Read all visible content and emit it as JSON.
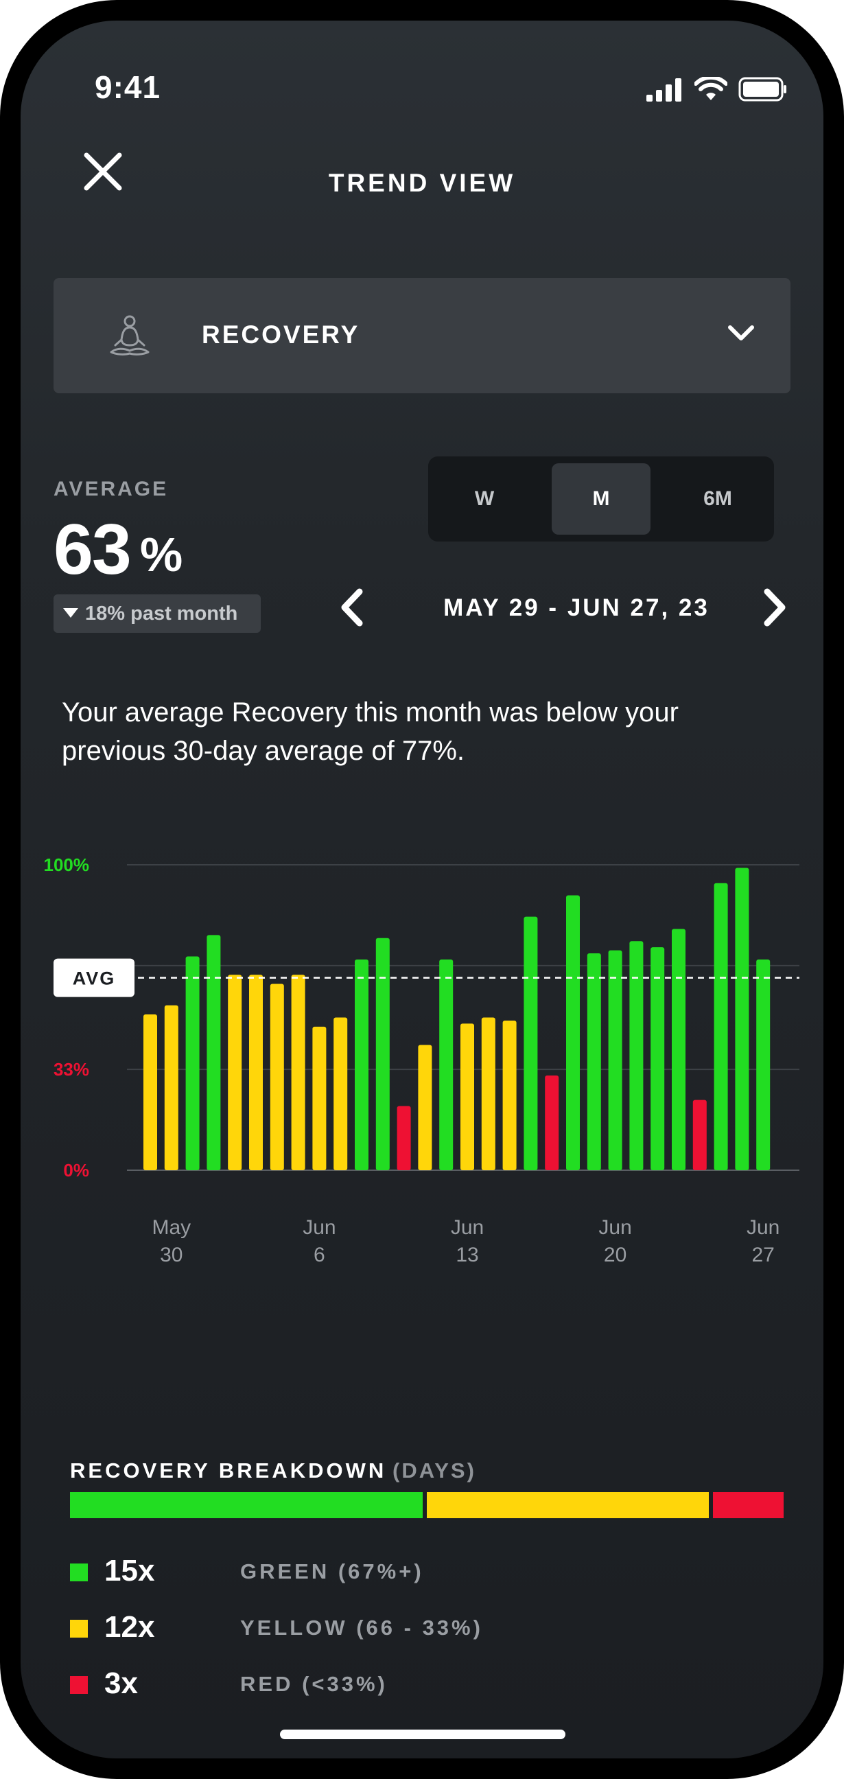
{
  "status": {
    "time": "9:41"
  },
  "header": {
    "title": "TREND VIEW",
    "close_icon": "close-icon"
  },
  "metric_dropdown": {
    "label": "RECOVERY",
    "icon": "meditation-icon",
    "chevron": "chevron-down-icon"
  },
  "average": {
    "label": "AVERAGE",
    "value": "63",
    "unit": "%",
    "change": "18% past month",
    "change_direction": "down"
  },
  "range_selector": {
    "options": [
      "W",
      "M",
      "6M"
    ],
    "selected": "M"
  },
  "date_range": {
    "label": "MAY 29 - JUN 27, 23"
  },
  "summary": "Your average Recovery this month was below your previous 30-day average of 77%.",
  "chart_data": {
    "type": "bar",
    "x": [
      "May 29",
      "May 30",
      "May 31",
      "Jun 1",
      "Jun 2",
      "Jun 3",
      "Jun 4",
      "Jun 5",
      "Jun 6",
      "Jun 7",
      "Jun 8",
      "Jun 9",
      "Jun 10",
      "Jun 11",
      "Jun 12",
      "Jun 13",
      "Jun 14",
      "Jun 15",
      "Jun 16",
      "Jun 17",
      "Jun 18",
      "Jun 19",
      "Jun 20",
      "Jun 21",
      "Jun 22",
      "Jun 23",
      "Jun 24",
      "Jun 25",
      "Jun 26",
      "Jun 27"
    ],
    "values": [
      51,
      54,
      70,
      77,
      64,
      64,
      61,
      64,
      47,
      50,
      69,
      76,
      21,
      41,
      69,
      48,
      50,
      49,
      83,
      31,
      90,
      71,
      72,
      75,
      73,
      79,
      23,
      94,
      99,
      69
    ],
    "colors": [
      "yellow",
      "yellow",
      "green",
      "green",
      "yellow",
      "yellow",
      "yellow",
      "yellow",
      "yellow",
      "yellow",
      "green",
      "green",
      "red",
      "yellow",
      "green",
      "yellow",
      "yellow",
      "yellow",
      "green",
      "red",
      "green",
      "green",
      "green",
      "green",
      "green",
      "green",
      "red",
      "green",
      "green",
      "green"
    ],
    "ylim": [
      0,
      100
    ],
    "y_ticks": [
      {
        "value": 100,
        "label": "100%",
        "color": "#22dd22"
      },
      {
        "value": 67,
        "label": "",
        "color": "#f0cc00"
      },
      {
        "value": 33,
        "label": "33%",
        "color": "#ee1133"
      },
      {
        "value": 0,
        "label": "0%",
        "color": "#ee1133"
      }
    ],
    "average_line": {
      "value": 63,
      "label": "AVG"
    },
    "x_tick_labels": [
      {
        "index": 1,
        "month": "May",
        "day": "30"
      },
      {
        "index": 8,
        "month": "Jun",
        "day": "6"
      },
      {
        "index": 15,
        "month": "Jun",
        "day": "13"
      },
      {
        "index": 22,
        "month": "Jun",
        "day": "20"
      },
      {
        "index": 29,
        "month": "Jun",
        "day": "27"
      }
    ],
    "grid": true
  },
  "breakdown": {
    "title": "RECOVERY BREAKDOWN",
    "subtitle": "(DAYS)",
    "items": [
      {
        "count": "15x",
        "label": "GREEN (67%+)",
        "days": 15,
        "color": "#22dd22"
      },
      {
        "count": "12x",
        "label": "YELLOW (66 - 33%)",
        "days": 12,
        "color": "#ffd60a"
      },
      {
        "count": "3x",
        "label": "RED (<33%)",
        "days": 3,
        "color": "#ee1133"
      }
    ]
  },
  "colors": {
    "green": "#22dd22",
    "yellow": "#ffd60a",
    "red": "#ee1133",
    "background": "#1e2125",
    "panel": "#3a3e43"
  }
}
